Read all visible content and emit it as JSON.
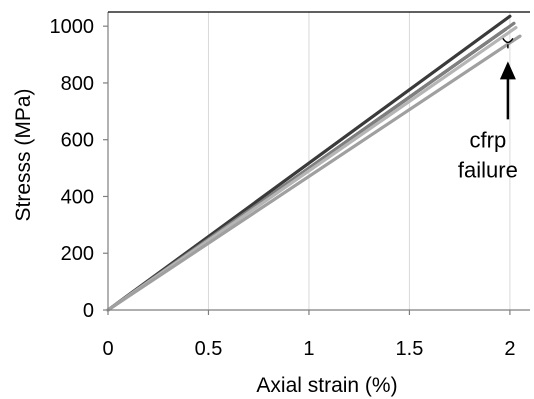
{
  "chart_data": {
    "type": "line",
    "title": "",
    "xlabel": "Axial strain (%)",
    "ylabel": "Stresss (MPa)",
    "xlim": [
      0,
      2.1
    ],
    "ylim": [
      0,
      1050
    ],
    "xticks": [
      0,
      0.5,
      1,
      1.5,
      2
    ],
    "xtick_labels": [
      "0",
      "0.5",
      "1",
      "1.5",
      "2"
    ],
    "yticks": [
      0,
      200,
      400,
      600,
      800,
      1000
    ],
    "ytick_labels": [
      "0",
      "200",
      "400",
      "600",
      "800",
      "1000"
    ],
    "grid": "vertical",
    "legend": "none",
    "series": [
      {
        "x": [
          0,
          2.0
        ],
        "y": [
          0,
          1035
        ],
        "color": "#3a3a3a"
      },
      {
        "x": [
          0,
          1.98
        ],
        "y": [
          0,
          990
        ],
        "color": "#222222"
      },
      {
        "x": [
          0,
          2.02
        ],
        "y": [
          0,
          1010
        ],
        "color": "#7f7f7f"
      },
      {
        "x": [
          0,
          2.03
        ],
        "y": [
          0,
          995
        ],
        "color": "#b5b5b5"
      },
      {
        "x": [
          0,
          2.05
        ],
        "y": [
          0,
          965
        ],
        "color": "#a0a0a0"
      }
    ],
    "annotations": [
      {
        "lines": [
          "cfrp",
          "failure"
        ],
        "arrow_to": {
          "x": 1.99,
          "y": 855
        },
        "marker": "Y"
      }
    ]
  }
}
